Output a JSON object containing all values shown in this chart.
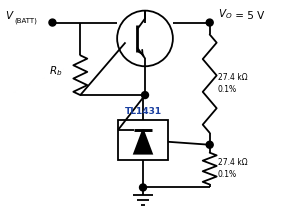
{
  "background_color": "#ffffff",
  "text_color": "#000000",
  "line_color": "#000000",
  "line_width": 1.3,
  "tl1431_color": "#1a3fa0",
  "v_batt": "V",
  "v_batt_sub": "(BATT)",
  "vo": "V",
  "vo_sub": "O",
  "vo_val": " = 5 V",
  "rb": "R",
  "rb_sub": "b",
  "r1": "27.4 kΩ\n0.1%",
  "r2": "27.4 kΩ\n0.1%",
  "tl": "TL1431"
}
